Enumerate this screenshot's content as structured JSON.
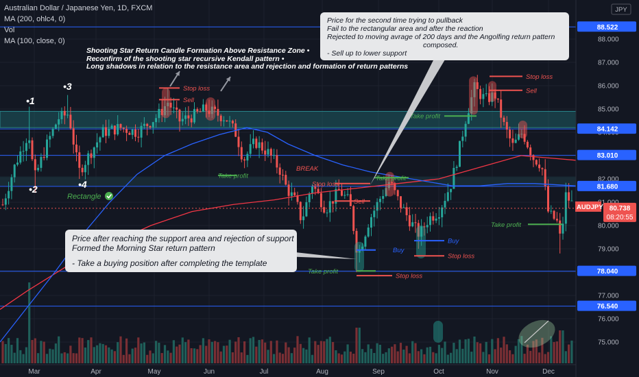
{
  "header": {
    "symbol": "Australian Dollar / Japanese Yen, 1D, FXCM",
    "ind1": "MA (200, ohlc4, 0)",
    "ind2": "Vol",
    "ind3": "MA (100, close, 0)"
  },
  "currency_badge": "JPY",
  "price_axis": {
    "ticks": [
      "88.000",
      "87.000",
      "86.000",
      "85.000",
      "84.000",
      "83.000",
      "82.000",
      "81.000",
      "80.000",
      "79.000",
      "78.000",
      "77.000",
      "76.000",
      "75.000"
    ],
    "levels": [
      {
        "label": "88.522",
        "value": 88.522,
        "color": "#2962ff"
      },
      {
        "label": "84.142",
        "value": 84.142,
        "color": "#2962ff"
      },
      {
        "label": "83.010",
        "value": 83.01,
        "color": "#2962ff"
      },
      {
        "label": "81.680",
        "value": 81.68,
        "color": "#2962ff"
      },
      {
        "label": "78.040",
        "value": 78.04,
        "color": "#2962ff"
      },
      {
        "label": "76.540",
        "value": 76.54,
        "color": "#2962ff"
      }
    ],
    "last_price": {
      "symbol": "AUDJPY",
      "price": "80.738",
      "countdown": "08:20:55",
      "value": 80.738,
      "color": "#ef5350"
    }
  },
  "time_axis": [
    "Mar",
    "Apr",
    "May",
    "Jun",
    "Jul",
    "Aug",
    "Sep",
    "Oct",
    "Nov",
    "Dec"
  ],
  "colors": {
    "up": "#26a69a",
    "down": "#ef5350",
    "ma200": "#f23645",
    "ma100": "#2962ff",
    "zone": "#1e6b70",
    "bg": "#131722"
  },
  "chart_data": {
    "type": "candlestick",
    "series": [
      {
        "name": "Australian Dollar / Japanese Yen, 1D, FXCM",
        "kind": "price",
        "points": [
          {
            "x": "Feb",
            "y": 81.0
          },
          {
            "x": "Mar",
            "y": 82.6
          },
          {
            "x": "Mar",
            "y": 83.8
          },
          {
            "x": "Apr",
            "y": 82.3
          },
          {
            "x": "May",
            "y": 84.4
          },
          {
            "x": "May",
            "y": 85.2
          },
          {
            "x": "Jun",
            "y": 84.7
          },
          {
            "x": "Jun",
            "y": 85.0
          },
          {
            "x": "Jul",
            "y": 83.1
          },
          {
            "x": "Jul",
            "y": 83.9
          },
          {
            "x": "Jul",
            "y": 82.6
          },
          {
            "x": "Aug",
            "y": 80.8
          },
          {
            "x": "Aug",
            "y": 81.5
          },
          {
            "x": "Aug",
            "y": 78.4
          },
          {
            "x": "Sep",
            "y": 81.5
          },
          {
            "x": "Sep",
            "y": 79.8
          },
          {
            "x": "Oct",
            "y": 80.1
          },
          {
            "x": "Oct",
            "y": 83.4
          },
          {
            "x": "Oct",
            "y": 85.8
          },
          {
            "x": "Nov",
            "y": 85.5
          },
          {
            "x": "Nov",
            "y": 84.0
          },
          {
            "x": "Nov",
            "y": 83.3
          },
          {
            "x": "Dec",
            "y": 80.5
          },
          {
            "x": "Dec",
            "y": 79.3
          },
          {
            "x": "Dec",
            "y": 80.7
          }
        ]
      },
      {
        "name": "MA (200, ohlc4, 0)",
        "kind": "ma200"
      },
      {
        "name": "MA (100, close, 0)",
        "kind": "ma100"
      },
      {
        "name": "Vol",
        "kind": "volume"
      }
    ],
    "resistance_zone": [
      84.2,
      84.9
    ],
    "ylim": [
      74.4,
      88.8
    ]
  },
  "annotations": {
    "shooting_star": [
      "Shooting Star Return Candle Formation Above Resistance Zone •",
      "Reconfirm of the shooting star recursive Kendall pattern •",
      "Long shadows in relation to the resistance area and rejection and formation of return patterns"
    ],
    "pullback_note": [
      "Price for the second time trying to pullback",
      "Fail to the rectangular area and after the reaction",
      "Rejected to moving avrage of 200 days and the Angolfing return pattern",
      "composed.",
      "- Sell up to lower support"
    ],
    "morning_star_note": [
      "Price after reaching the support area and rejection of support",
      "Formed the Morning Star return pattern",
      "",
      "- Take a buying position after completing the template"
    ],
    "point_labels": [
      "•1",
      "•2",
      "•3",
      "•4"
    ],
    "rectangle": "Rectangle",
    "break": "BREAK",
    "stop_loss": "Stop loss",
    "sell": "Sell",
    "buy": "Buy",
    "take_profit": "Take profit"
  }
}
